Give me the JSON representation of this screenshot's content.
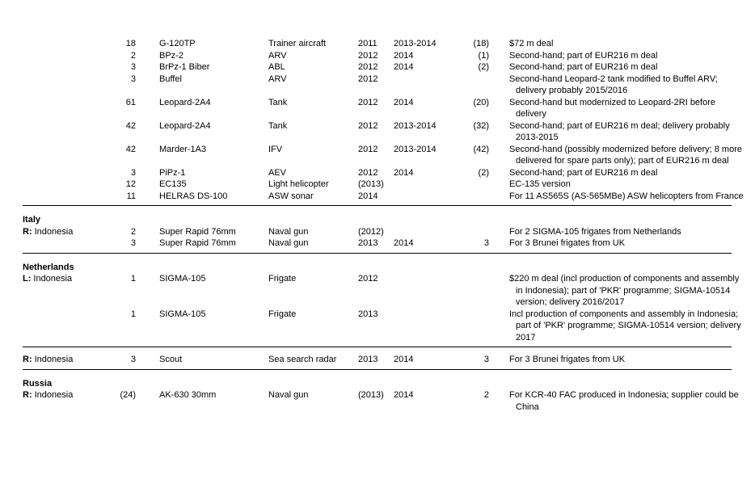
{
  "table": {
    "sections": [
      {
        "heading": "",
        "rows": [
          {
            "qty": "18",
            "designation": "G-120TP",
            "description": "Trainer aircraft",
            "ordered": "2011",
            "delivered_years": "2013-2014",
            "delivered_qty": "(18)",
            "comment": "$72 m deal"
          },
          {
            "qty": "2",
            "designation": "BPz-2",
            "description": "ARV",
            "ordered": "2012",
            "delivered_years": "2014",
            "delivered_qty": "(1)",
            "comment": "Second-hand; part of EUR216 m deal"
          },
          {
            "qty": "3",
            "designation": "BrPz-1 Biber",
            "description": "ABL",
            "ordered": "2012",
            "delivered_years": "2014",
            "delivered_qty": "(2)",
            "comment": "Second-hand; part of EUR216 m deal"
          },
          {
            "qty": "3",
            "designation": "Buffel",
            "description": "ARV",
            "ordered": "2012",
            "delivered_years": "",
            "delivered_qty": "",
            "comment": "Second-hand Leopard-2 tank modified to Buffel ARV; delivery probably 2015/2016"
          },
          {
            "qty": "61",
            "designation": "Leopard-2A4",
            "description": "Tank",
            "ordered": "2012",
            "delivered_years": "2014",
            "delivered_qty": "(20)",
            "comment": "Second-hand but modernized to Leopard-2RI before delivery"
          },
          {
            "qty": "42",
            "designation": "Leopard-2A4",
            "description": "Tank",
            "ordered": "2012",
            "delivered_years": "2013-2014",
            "delivered_qty": "(32)",
            "comment": "Second-hand; part of EUR216 m deal; delivery probably 2013-2015"
          },
          {
            "qty": "42",
            "designation": "Marder-1A3",
            "description": "IFV",
            "ordered": "2012",
            "delivered_years": "2013-2014",
            "delivered_qty": "(42)",
            "comment": "Second-hand (possibly modernized before delivery; 8 more delivered for spare parts only); part of EUR216 m deal"
          },
          {
            "qty": "3",
            "designation": "PiPz-1",
            "description": "AEV",
            "ordered": "2012",
            "delivered_years": "2014",
            "delivered_qty": "(2)",
            "comment": "Second-hand; part of EUR216 m deal"
          },
          {
            "qty": "12",
            "designation": "EC135",
            "description": "Light helicopter",
            "ordered": "(2013)",
            "delivered_years": "",
            "delivered_qty": "",
            "comment": "EC-135 version"
          },
          {
            "qty": "11",
            "designation": "HELRAS DS-100",
            "description": "ASW sonar",
            "ordered": "2014",
            "delivered_years": "",
            "delivered_qty": "",
            "comment": "For 11 AS565S (AS-565MBe) ASW helicopters from France"
          }
        ]
      },
      {
        "heading": "Italy",
        "rows": [
          {
            "label_prefix": "R:",
            "label_name": "Indonesia",
            "qty": "2",
            "designation": "Super Rapid 76mm",
            "description": "Naval gun",
            "ordered": "(2012)",
            "delivered_years": "",
            "delivered_qty": "",
            "comment": "For 2 SIGMA-105 frigates from Netherlands"
          },
          {
            "qty": "3",
            "designation": "Super Rapid 76mm",
            "description": "Naval gun",
            "ordered": "2013",
            "delivered_years": "2014",
            "delivered_qty": "3",
            "comment": "For 3 Brunei frigates from UK"
          }
        ]
      },
      {
        "heading": "Netherlands",
        "rows": [
          {
            "label_prefix": "L:",
            "label_name": "Indonesia",
            "qty": "1",
            "designation": "SIGMA-105",
            "description": "Frigate",
            "ordered": "2012",
            "delivered_years": "",
            "delivered_qty": "",
            "comment": "$220 m deal (incl production of components and assembly in Indonesia); part of 'PKR' programme; SIGMA-10514 version; delivery 2016/2017"
          },
          {
            "qty": "1",
            "designation": "SIGMA-105",
            "description": "Frigate",
            "ordered": "2013",
            "delivered_years": "",
            "delivered_qty": "",
            "comment": "Incl production of components and assembly in Indonesia; part of 'PKR' programme; SIGMA-10514 version; delivery 2017"
          }
        ]
      },
      {
        "heading": "",
        "rows": [
          {
            "label_prefix": "R:",
            "label_name": "Indonesia",
            "qty": "3",
            "designation": "Scout",
            "description": "Sea search radar",
            "ordered": "2013",
            "delivered_years": "2014",
            "delivered_qty": "3",
            "comment": "For 3 Brunei frigates from UK"
          }
        ]
      },
      {
        "heading": "Russia",
        "rows": [
          {
            "label_prefix": "R:",
            "label_name": "Indonesia",
            "qty": "(24)",
            "designation": "AK-630 30mm",
            "description": "Naval gun",
            "ordered": "(2013)",
            "delivered_years": "2014",
            "delivered_qty": "2",
            "comment": "For KCR-40 FAC produced in Indonesia; supplier could be China"
          }
        ]
      }
    ]
  }
}
